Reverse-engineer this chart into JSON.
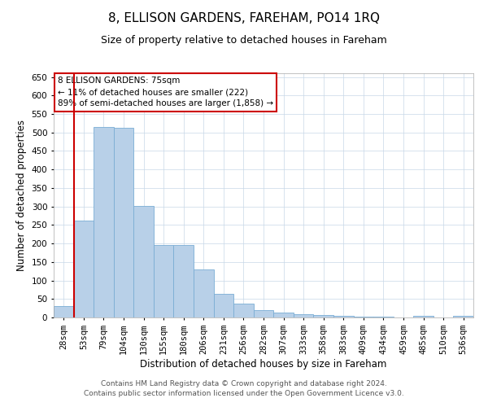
{
  "title": "8, ELLISON GARDENS, FAREHAM, PO14 1RQ",
  "subtitle": "Size of property relative to detached houses in Fareham",
  "xlabel": "Distribution of detached houses by size in Fareham",
  "ylabel": "Number of detached properties",
  "categories": [
    "28sqm",
    "53sqm",
    "79sqm",
    "104sqm",
    "130sqm",
    "155sqm",
    "180sqm",
    "206sqm",
    "231sqm",
    "256sqm",
    "282sqm",
    "307sqm",
    "333sqm",
    "358sqm",
    "383sqm",
    "409sqm",
    "434sqm",
    "459sqm",
    "485sqm",
    "510sqm",
    "536sqm"
  ],
  "values": [
    30,
    262,
    515,
    512,
    302,
    195,
    195,
    130,
    63,
    38,
    20,
    14,
    8,
    7,
    4,
    3,
    2,
    1,
    5,
    1,
    5
  ],
  "bar_color": "#b8d0e8",
  "bar_edge_color": "#7aadd4",
  "annotation_title": "8 ELLISON GARDENS: 75sqm",
  "annotation_line1": "← 11% of detached houses are smaller (222)",
  "annotation_line2": "89% of semi-detached houses are larger (1,858) →",
  "annotation_box_color": "#ffffff",
  "annotation_box_edge": "#cc0000",
  "redline_x": 1.5,
  "ylim": [
    0,
    660
  ],
  "yticks": [
    0,
    50,
    100,
    150,
    200,
    250,
    300,
    350,
    400,
    450,
    500,
    550,
    600,
    650
  ],
  "footer_line1": "Contains HM Land Registry data © Crown copyright and database right 2024.",
  "footer_line2": "Contains public sector information licensed under the Open Government Licence v3.0.",
  "background_color": "#ffffff",
  "grid_color": "#c8d8e8",
  "title_fontsize": 11,
  "subtitle_fontsize": 9,
  "axis_label_fontsize": 8.5,
  "tick_fontsize": 7.5,
  "footer_fontsize": 6.5
}
